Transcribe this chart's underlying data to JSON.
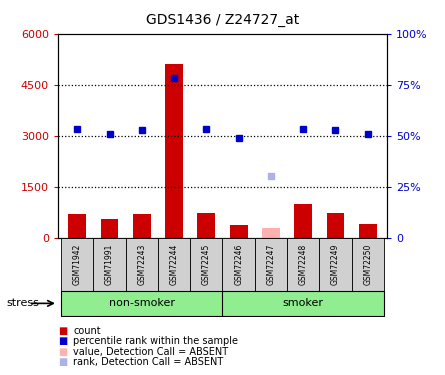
{
  "title": "GDS1436 / Z24727_at",
  "samples": [
    "GSM71942",
    "GSM71991",
    "GSM72243",
    "GSM72244",
    "GSM72245",
    "GSM72246",
    "GSM72247",
    "GSM72248",
    "GSM72249",
    "GSM72250"
  ],
  "count_values": [
    700,
    550,
    700,
    5100,
    750,
    400,
    300,
    1000,
    750,
    420
  ],
  "count_absent": [
    false,
    false,
    false,
    false,
    false,
    false,
    true,
    false,
    false,
    false
  ],
  "rank_values": [
    3200,
    3060,
    3180,
    4700,
    3200,
    2940,
    1820,
    3200,
    3180,
    3060
  ],
  "rank_absent": [
    false,
    false,
    false,
    false,
    false,
    false,
    true,
    false,
    false,
    false
  ],
  "count_bar_color": "#cc0000",
  "count_absent_color": "#ffb0b0",
  "rank_dot_color": "#0000cc",
  "rank_absent_color": "#b0b0e8",
  "ylim_left": [
    0,
    6000
  ],
  "ylim_right": [
    0,
    100
  ],
  "yticks_left": [
    0,
    1500,
    3000,
    4500,
    6000
  ],
  "yticks_right": [
    0,
    25,
    50,
    75,
    100
  ],
  "ytick_labels_left": [
    "0",
    "1500",
    "3000",
    "4500",
    "6000"
  ],
  "ytick_labels_right": [
    "0",
    "25%",
    "50%",
    "75%",
    "100%"
  ],
  "group_labels": [
    "non-smoker",
    "smoker"
  ],
  "group_split": 5,
  "group_color": "#90ee90",
  "stress_label": "stress",
  "legend_items": [
    {
      "label": "count",
      "color": "#cc0000"
    },
    {
      "label": "percentile rank within the sample",
      "color": "#0000cc"
    },
    {
      "label": "value, Detection Call = ABSENT",
      "color": "#ffb0b0"
    },
    {
      "label": "rank, Detection Call = ABSENT",
      "color": "#b0b0e8"
    }
  ],
  "bar_width": 0.55,
  "tick_bg_color": "#d0d0d0",
  "left_axis_color": "#cc0000",
  "right_axis_color": "#0000cc",
  "dotted_lines": [
    1500,
    3000,
    4500
  ]
}
